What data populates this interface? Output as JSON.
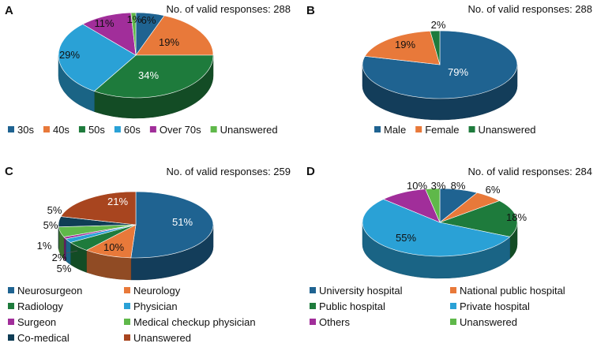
{
  "colors": {
    "blue": "#1f6391",
    "orange": "#e8793a",
    "green": "#1e7b3c",
    "sky": "#2aa1d6",
    "purple": "#a12e9a",
    "lightgreen": "#5fb84a",
    "navy": "#0f3d55",
    "brown": "#a8451f"
  },
  "chart_data": [
    {
      "panel": "A",
      "type": "pie",
      "subtitle": "No. of valid responses: 288",
      "categories": [
        "30s",
        "40s",
        "50s",
        "60s",
        "Over 70s",
        "Unanswered"
      ],
      "values": [
        6,
        19,
        34,
        29,
        11,
        1
      ],
      "data_labels": [
        "6%",
        "19%",
        "34%",
        "29%",
        "11%",
        "1%"
      ],
      "legend": "bottom"
    },
    {
      "panel": "B",
      "type": "pie",
      "subtitle": "No. of valid responses: 288",
      "categories": [
        "Male",
        "Female",
        "Unanswered"
      ],
      "values": [
        79,
        19,
        2
      ],
      "data_labels": [
        "79%",
        "19%",
        "2%"
      ],
      "legend": "bottom"
    },
    {
      "panel": "C",
      "type": "pie",
      "subtitle": "No. of valid responses: 259",
      "categories": [
        "Neurosurgeon",
        "Neurology",
        "Radiology",
        "Physician",
        "Surgeon",
        "Medical checkup physician",
        "Co-medical",
        "Unanswered"
      ],
      "values": [
        51,
        10,
        5,
        2,
        1,
        5,
        5,
        21
      ],
      "data_labels": [
        "51%",
        "10%",
        "5%",
        "2%",
        "1%",
        "5%",
        "5%",
        "21%"
      ],
      "legend": "bottom"
    },
    {
      "panel": "D",
      "type": "pie",
      "subtitle": "No. of valid responses: 284",
      "categories": [
        "University hospital",
        "National public hospital",
        "Public hospital",
        "Private hospital",
        "Others",
        "Unanswered"
      ],
      "values": [
        8,
        6,
        18,
        55,
        10,
        3
      ],
      "data_labels": [
        "8%",
        "6%",
        "18%",
        "55%",
        "10%",
        "3%"
      ],
      "legend": "bottom"
    }
  ]
}
